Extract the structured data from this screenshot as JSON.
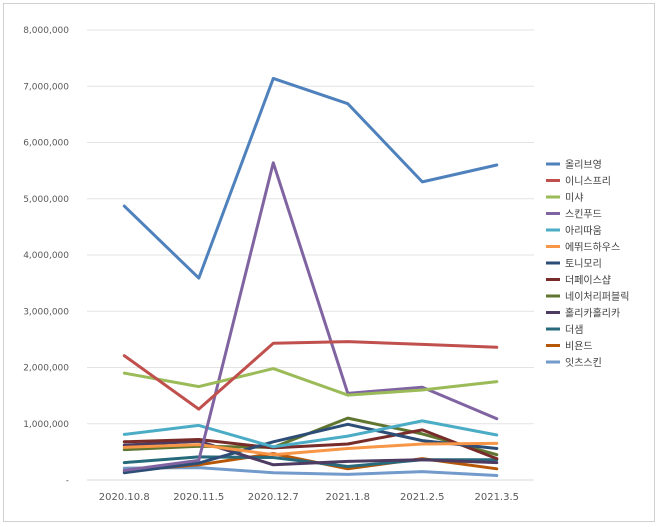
{
  "chart_data": {
    "type": "line",
    "title": "",
    "xlabel": "",
    "ylabel": "",
    "ylim": [
      0,
      8000000
    ],
    "yticks": [
      0,
      1000000,
      2000000,
      3000000,
      4000000,
      5000000,
      6000000,
      7000000,
      8000000
    ],
    "ytick_labels": [
      "-",
      "1,000,000",
      "2,000,000",
      "3,000,000",
      "4,000,000",
      "5,000,000",
      "6,000,000",
      "7,000,000",
      "8,000,000"
    ],
    "categories": [
      "2020.10.8",
      "2020.11.5",
      "2020.12.7",
      "2021.1.8",
      "2021.2.5",
      "2021.3.5"
    ],
    "grid": "horizontal",
    "legend_position": "right",
    "series": [
      {
        "name": "올리브영",
        "color": "#4f81bd",
        "values": [
          4870000,
          3590000,
          7140000,
          6690000,
          5300000,
          5600000
        ]
      },
      {
        "name": "이니스프리",
        "color": "#c0504d",
        "values": [
          2210000,
          1260000,
          2430000,
          2460000,
          2410000,
          2360000
        ]
      },
      {
        "name": "미샤",
        "color": "#9bbb59",
        "values": [
          1900000,
          1660000,
          1980000,
          1510000,
          1600000,
          1750000
        ]
      },
      {
        "name": "스킨푸드",
        "color": "#8064a2",
        "values": [
          170000,
          350000,
          5640000,
          1540000,
          1650000,
          1090000
        ]
      },
      {
        "name": "아리따움",
        "color": "#4bacc6",
        "values": [
          810000,
          970000,
          590000,
          780000,
          1050000,
          800000
        ]
      },
      {
        "name": "에뛰드하우스",
        "color": "#f79646",
        "values": [
          580000,
          630000,
          450000,
          560000,
          640000,
          650000
        ]
      },
      {
        "name": "토니모리",
        "color": "#2c4d75",
        "values": [
          130000,
          300000,
          680000,
          990000,
          700000,
          560000
        ]
      },
      {
        "name": "더페이스샵",
        "color": "#772c2a",
        "values": [
          680000,
          720000,
          570000,
          640000,
          890000,
          380000
        ]
      },
      {
        "name": "네이처리퍼블릭",
        "color": "#5f7530",
        "values": [
          540000,
          600000,
          580000,
          1100000,
          820000,
          450000
        ]
      },
      {
        "name": "홀리카홀리카",
        "color": "#4d3b62",
        "values": [
          620000,
          690000,
          270000,
          330000,
          360000,
          310000
        ]
      },
      {
        "name": "더샘",
        "color": "#276a7c",
        "values": [
          310000,
          410000,
          400000,
          240000,
          360000,
          360000
        ]
      },
      {
        "name": "비욘드",
        "color": "#b65708",
        "values": [
          160000,
          270000,
          470000,
          200000,
          380000,
          200000
        ]
      },
      {
        "name": "잇츠스킨",
        "color": "#729aca",
        "values": [
          210000,
          220000,
          130000,
          100000,
          150000,
          80000
        ]
      }
    ]
  }
}
